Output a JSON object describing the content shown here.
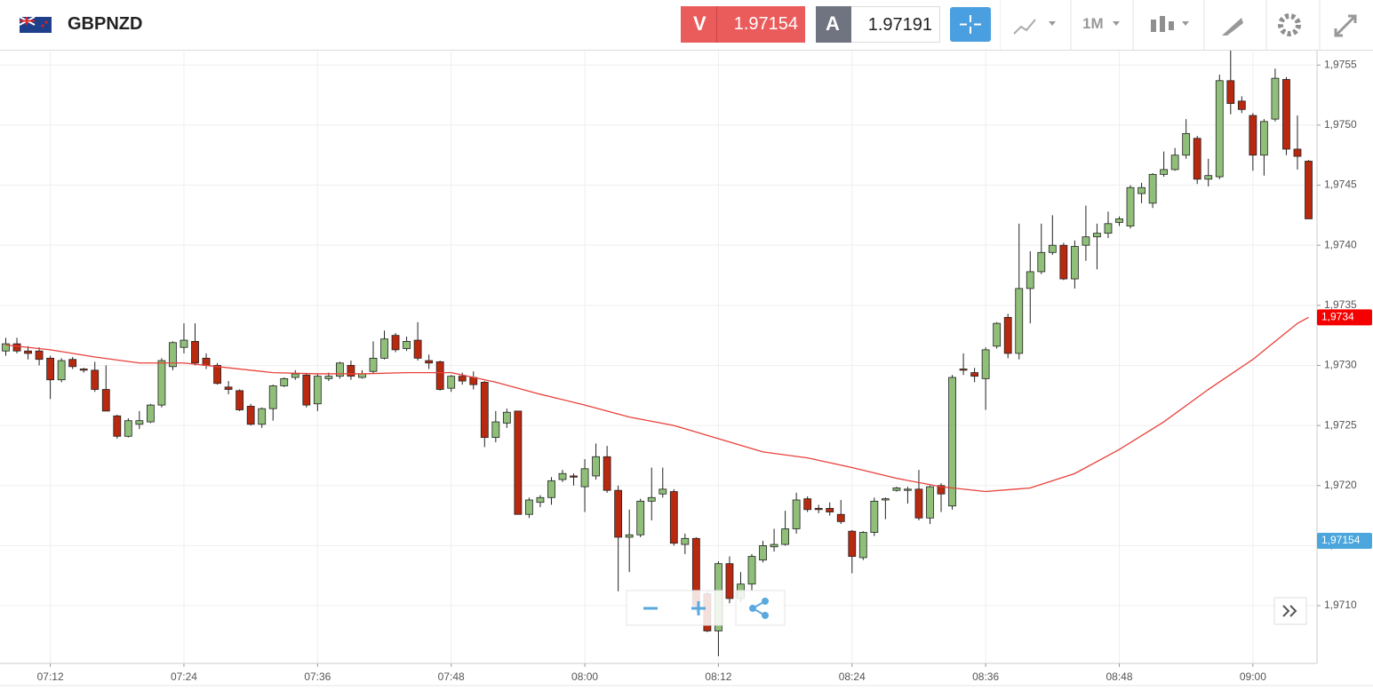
{
  "toolbar": {
    "symbol": "GBPNZD",
    "sell_label": "V",
    "sell_price": "1.97154",
    "buy_label": "A",
    "buy_price": "1.97191",
    "timeframe": "1M"
  },
  "chart_data": {
    "type": "candlestick",
    "up_color": "#8fbf78",
    "down_color": "#b8290f",
    "grid": true,
    "x": [
      "07:08",
      "07:09",
      "07:10",
      "07:11",
      "07:12",
      "07:13",
      "07:14",
      "07:15",
      "07:16",
      "07:17",
      "07:18",
      "07:19",
      "07:20",
      "07:21",
      "07:22",
      "07:23",
      "07:24",
      "07:25",
      "07:26",
      "07:27",
      "07:28",
      "07:29",
      "07:30",
      "07:31",
      "07:32",
      "07:33",
      "07:34",
      "07:35",
      "07:36",
      "07:37",
      "07:38",
      "07:39",
      "07:40",
      "07:41",
      "07:42",
      "07:43",
      "07:44",
      "07:45",
      "07:46",
      "07:47",
      "07:48",
      "07:49",
      "07:50",
      "07:51",
      "07:52",
      "07:53",
      "07:54",
      "07:55",
      "07:56",
      "07:57",
      "07:58",
      "07:59",
      "08:00",
      "08:01",
      "08:02",
      "08:03",
      "08:04",
      "08:05",
      "08:06",
      "08:07",
      "08:08",
      "08:09",
      "08:10",
      "08:11",
      "08:12",
      "08:13",
      "08:14",
      "08:15",
      "08:16",
      "08:17",
      "08:18",
      "08:19",
      "08:20",
      "08:21",
      "08:22",
      "08:23",
      "08:24",
      "08:25",
      "08:26",
      "08:27",
      "08:28",
      "08:29",
      "08:30",
      "08:31",
      "08:32",
      "08:33",
      "08:34",
      "08:35",
      "08:36",
      "08:37",
      "08:38",
      "08:39",
      "08:40",
      "08:41",
      "08:42",
      "08:43",
      "08:44",
      "08:45",
      "08:46",
      "08:47",
      "08:48",
      "08:49",
      "08:50",
      "08:51",
      "08:52",
      "08:53",
      "08:54",
      "08:55",
      "08:56",
      "08:57",
      "08:58",
      "08:59",
      "09:00",
      "09:01",
      "09:02",
      "09:03",
      "09:04",
      "09:05"
    ],
    "open": [
      1.97312,
      1.97318,
      1.97312,
      1.97312,
      1.97306,
      1.97288,
      1.97305,
      1.97297,
      1.97296,
      1.9728,
      1.97258,
      1.97241,
      1.97251,
      1.97253,
      1.97267,
      1.97299,
      1.97315,
      1.9732,
      1.97306,
      1.973,
      1.97282,
      1.97279,
      1.97266,
      1.97251,
      1.97264,
      1.97283,
      1.9729,
      1.97292,
      1.97268,
      1.97289,
      1.97291,
      1.973,
      1.9729,
      1.97295,
      1.97306,
      1.97325,
      1.97314,
      1.97321,
      1.97304,
      1.97303,
      1.97281,
      1.97291,
      1.9729,
      1.97286,
      1.9724,
      1.97252,
      1.97262,
      1.97176,
      1.97186,
      1.9719,
      1.97205,
      1.97208,
      1.97199,
      1.97208,
      1.97224,
      1.97196,
      1.97157,
      1.97159,
      1.97187,
      1.97193,
      1.97195,
      1.97151,
      1.97156,
      1.9711,
      1.97079,
      1.97135,
      1.97106,
      1.97118,
      1.97138,
      1.97149,
      1.97151,
      1.97164,
      1.97189,
      1.97181,
      1.97181,
      1.97176,
      1.97162,
      1.9714,
      1.97161,
      1.97188,
      1.97196,
      1.97196,
      1.97197,
      1.97173,
      1.972,
      1.97183,
      1.97297,
      1.97294,
      1.97289,
      1.97316,
      1.9734,
      1.9731,
      1.97364,
      1.97378,
      1.97394,
      1.974,
      1.97372,
      1.974,
      1.97407,
      1.9741,
      1.97419,
      1.97416,
      1.97443,
      1.97435,
      1.97459,
      1.97463,
      1.97475,
      1.97489,
      1.97455,
      1.97457,
      1.97537,
      1.9752,
      1.97508,
      1.97475,
      1.97505,
      1.97538,
      1.9748,
      1.9747
    ],
    "high": [
      1.97323,
      1.97323,
      1.97316,
      1.97315,
      1.97308,
      1.97306,
      1.97307,
      1.97298,
      1.97303,
      1.973,
      1.97259,
      1.97256,
      1.97262,
      1.97268,
      1.97306,
      1.9732,
      1.97335,
      1.97335,
      1.9731,
      1.97302,
      1.97287,
      1.9728,
      1.97268,
      1.97265,
      1.97284,
      1.9729,
      1.97296,
      1.97293,
      1.97293,
      1.97294,
      1.97303,
      1.97304,
      1.97296,
      1.9732,
      1.97329,
      1.97327,
      1.97324,
      1.97336,
      1.97309,
      1.97304,
      1.97292,
      1.97294,
      1.97295,
      1.97287,
      1.97262,
      1.97264,
      1.97262,
      1.9719,
      1.97192,
      1.97207,
      1.97213,
      1.9721,
      1.97222,
      1.97235,
      1.97233,
      1.972,
      1.9718,
      1.97189,
      1.97215,
      1.97215,
      1.97197,
      1.9716,
      1.97157,
      1.97112,
      1.97137,
      1.97141,
      1.97128,
      1.97143,
      1.97154,
      1.97164,
      1.97179,
      1.97194,
      1.97191,
      1.97184,
      1.97186,
      1.97188,
      1.97163,
      1.97162,
      1.9719,
      1.9719,
      1.97199,
      1.97199,
      1.97213,
      1.972,
      1.97202,
      1.97292,
      1.9731,
      1.97298,
      1.97315,
      1.97336,
      1.97343,
      1.97418,
      1.97395,
      1.97418,
      1.97425,
      1.97402,
      1.97404,
      1.97433,
      1.97418,
      1.97428,
      1.97424,
      1.9745,
      1.97452,
      1.9746,
      1.97478,
      1.97481,
      1.97505,
      1.97491,
      1.97472,
      1.97542,
      1.97566,
      1.97524,
      1.9751,
      1.97505,
      1.97547,
      1.9754,
      1.97508,
      1.97471
    ],
    "low": [
      1.97308,
      1.9731,
      1.97305,
      1.973,
      1.97272,
      1.97286,
      1.97297,
      1.97294,
      1.97278,
      1.97262,
      1.97239,
      1.9724,
      1.97247,
      1.97252,
      1.97265,
      1.97296,
      1.9731,
      1.973,
      1.97297,
      1.97284,
      1.97276,
      1.97262,
      1.9725,
      1.97248,
      1.97254,
      1.97282,
      1.97288,
      1.97265,
      1.97262,
      1.97287,
      1.97289,
      1.97288,
      1.97289,
      1.97293,
      1.97305,
      1.97311,
      1.97312,
      1.97304,
      1.97297,
      1.97279,
      1.97278,
      1.97284,
      1.9728,
      1.97232,
      1.97236,
      1.97248,
      1.97176,
      1.97173,
      1.97182,
      1.97184,
      1.97203,
      1.972,
      1.97178,
      1.97205,
      1.97194,
      1.97112,
      1.97128,
      1.97157,
      1.97171,
      1.9719,
      1.9715,
      1.97143,
      1.97095,
      1.97078,
      1.97058,
      1.97102,
      1.97103,
      1.97113,
      1.97136,
      1.97145,
      1.9715,
      1.9716,
      1.97178,
      1.97177,
      1.97175,
      1.97168,
      1.97127,
      1.97138,
      1.97158,
      1.97172,
      1.97195,
      1.97185,
      1.97171,
      1.97168,
      1.97178,
      1.9718,
      1.97292,
      1.97286,
      1.97263,
      1.97314,
      1.97306,
      1.97305,
      1.97335,
      1.97376,
      1.97392,
      1.97371,
      1.97364,
      1.97387,
      1.9738,
      1.97406,
      1.97416,
      1.97414,
      1.97435,
      1.97431,
      1.97457,
      1.97462,
      1.97472,
      1.97451,
      1.97449,
      1.97455,
      1.97509,
      1.9751,
      1.97462,
      1.97458,
      1.97503,
      1.97475,
      1.97463,
      1.97422
    ],
    "close": [
      1.97318,
      1.97312,
      1.9731,
      1.97305,
      1.97288,
      1.97304,
      1.97299,
      1.97296,
      1.9728,
      1.97262,
      1.97241,
      1.97254,
      1.97254,
      1.97267,
      1.97304,
      1.97319,
      1.97321,
      1.97302,
      1.973,
      1.97285,
      1.9728,
      1.97263,
      1.97251,
      1.97264,
      1.97283,
      1.97289,
      1.97293,
      1.97267,
      1.97291,
      1.97291,
      1.97302,
      1.97291,
      1.97293,
      1.97306,
      1.97322,
      1.97313,
      1.9732,
      1.97306,
      1.97302,
      1.9728,
      1.97291,
      1.97287,
      1.97284,
      1.9724,
      1.97253,
      1.97261,
      1.97176,
      1.97188,
      1.9719,
      1.97204,
      1.9721,
      1.97207,
      1.97214,
      1.97224,
      1.97196,
      1.97157,
      1.97159,
      1.97187,
      1.9719,
      1.97197,
      1.97152,
      1.97156,
      1.971,
      1.97079,
      1.97135,
      1.97106,
      1.97118,
      1.97141,
      1.9715,
      1.97151,
      1.97164,
      1.97188,
      1.9718,
      1.9718,
      1.97178,
      1.9717,
      1.97141,
      1.97161,
      1.97187,
      1.97189,
      1.97198,
      1.97197,
      1.97173,
      1.97199,
      1.97193,
      1.9729,
      1.97296,
      1.97291,
      1.97313,
      1.97335,
      1.9731,
      1.97364,
      1.97378,
      1.97394,
      1.974,
      1.97372,
      1.97399,
      1.97407,
      1.9741,
      1.97418,
      1.97422,
      1.97448,
      1.97448,
      1.97459,
      1.97463,
      1.97475,
      1.97493,
      1.97455,
      1.97458,
      1.97537,
      1.97518,
      1.97513,
      1.97475,
      1.97503,
      1.97539,
      1.9748,
      1.97474,
      1.97422
    ],
    "ma": {
      "color": "#e8403a",
      "x": [
        "07:08",
        "07:12",
        "07:16",
        "07:20",
        "07:24",
        "07:28",
        "07:32",
        "07:36",
        "07:40",
        "07:44",
        "07:48",
        "07:52",
        "07:56",
        "08:00",
        "08:04",
        "08:08",
        "08:12",
        "08:16",
        "08:20",
        "08:24",
        "08:28",
        "08:32",
        "08:36",
        "08:40",
        "08:44",
        "08:48",
        "08:52",
        "08:56",
        "09:00",
        "09:04",
        "09:05"
      ],
      "values": [
        1.97317,
        1.97313,
        1.97307,
        1.97302,
        1.97302,
        1.97298,
        1.97294,
        1.97293,
        1.97293,
        1.97294,
        1.97294,
        1.97286,
        1.97276,
        1.97267,
        1.97257,
        1.9725,
        1.97239,
        1.97228,
        1.97223,
        1.97215,
        1.97206,
        1.97199,
        1.97195,
        1.97198,
        1.9721,
        1.9723,
        1.97253,
        1.9728,
        1.97305,
        1.97335,
        1.9734
      ]
    },
    "ylim": [
      1.97052,
      1.97562
    ],
    "yticks": [
      {
        "value": 1.971,
        "label": "1,9710"
      },
      {
        "value": 1.9715,
        "label": "1,9715"
      },
      {
        "value": 1.972,
        "label": "1,9720"
      },
      {
        "value": 1.9725,
        "label": "1,9725"
      },
      {
        "value": 1.973,
        "label": "1,9730"
      },
      {
        "value": 1.9735,
        "label": "1,9735"
      },
      {
        "value": 1.974,
        "label": "1,9740"
      },
      {
        "value": 1.9745,
        "label": "1,9745"
      },
      {
        "value": 1.975,
        "label": "1,9750"
      },
      {
        "value": 1.9755,
        "label": "1,9755"
      }
    ],
    "xticks": [
      "07:12",
      "07:24",
      "07:36",
      "07:48",
      "08:00",
      "08:12",
      "08:24",
      "08:36",
      "08:48",
      "09:00"
    ],
    "markers": [
      {
        "value": 1.9734,
        "label": "1,9734",
        "color": "#f40000"
      },
      {
        "value": 1.97154,
        "label": "1,97154",
        "color": "#4aa6dc"
      }
    ]
  }
}
